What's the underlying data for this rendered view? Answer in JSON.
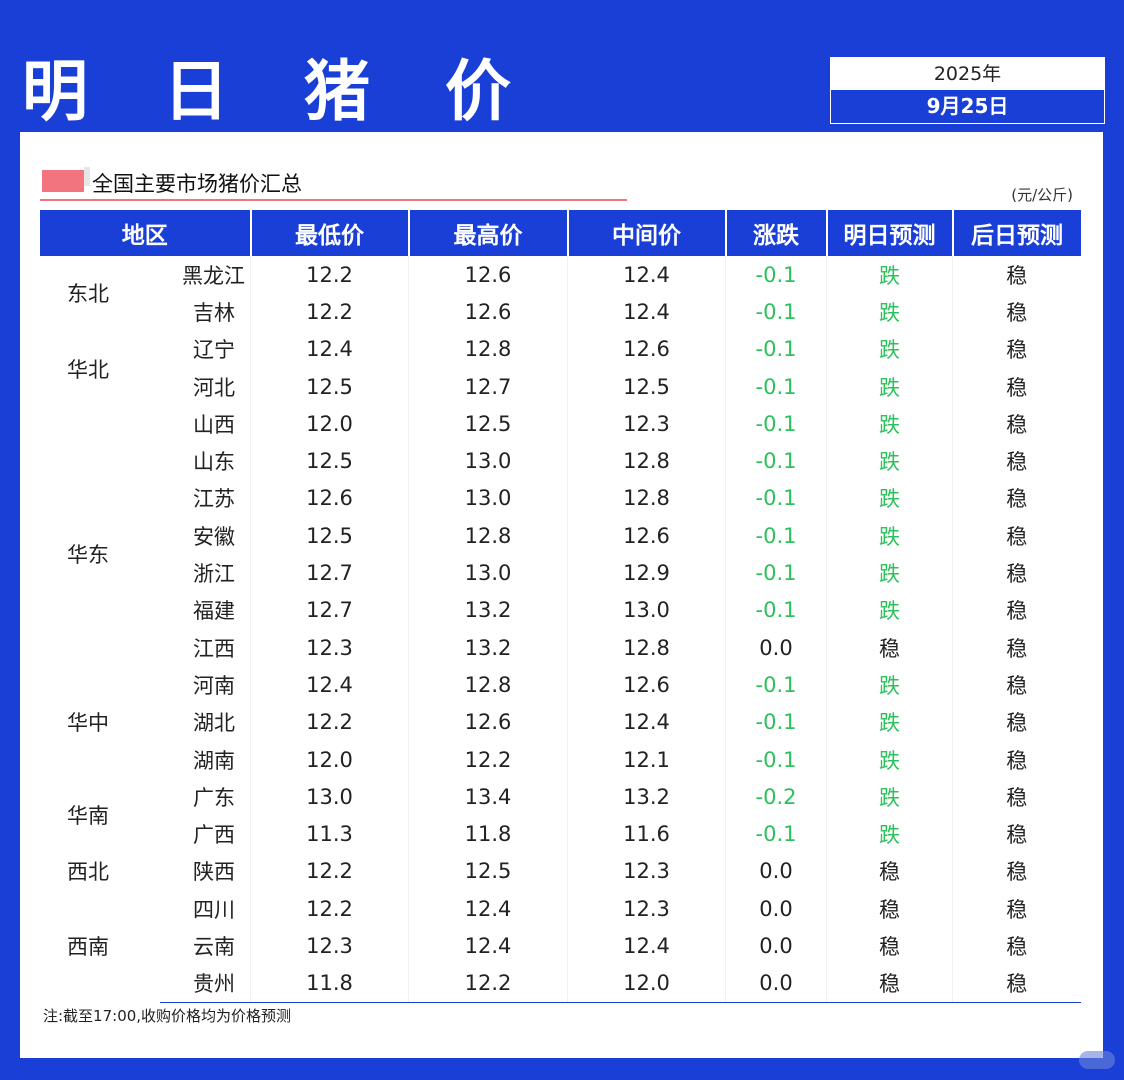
{
  "header": {
    "title": "明 日 猪 价",
    "year": "2025年",
    "date": "9月25日"
  },
  "section": {
    "title": "全国主要市场猪价汇总",
    "unit": "(元/公斤)"
  },
  "table": {
    "columns": [
      "地区",
      "最低价",
      "最高价",
      "中间价",
      "涨跌",
      "明日预测",
      "后日预测"
    ],
    "rows": [
      {
        "region": "东北",
        "province": "黑龙江",
        "low": "12.2",
        "high": "12.6",
        "mid": "12.4",
        "change": "-0.1",
        "forecast_tomorrow": "跌",
        "forecast_day_after": "稳"
      },
      {
        "region": "",
        "province": "吉林",
        "low": "12.2",
        "high": "12.6",
        "mid": "12.4",
        "change": "-0.1",
        "forecast_tomorrow": "跌",
        "forecast_day_after": "稳"
      },
      {
        "region": "华北",
        "province": "辽宁",
        "low": "12.4",
        "high": "12.8",
        "mid": "12.6",
        "change": "-0.1",
        "forecast_tomorrow": "跌",
        "forecast_day_after": "稳"
      },
      {
        "region": "",
        "province": "河北",
        "low": "12.5",
        "high": "12.7",
        "mid": "12.5",
        "change": "-0.1",
        "forecast_tomorrow": "跌",
        "forecast_day_after": "稳"
      },
      {
        "region": "",
        "province": "山西",
        "low": "12.0",
        "high": "12.5",
        "mid": "12.3",
        "change": "-0.1",
        "forecast_tomorrow": "跌",
        "forecast_day_after": "稳"
      },
      {
        "region": "华东",
        "province": "山东",
        "low": "12.5",
        "high": "13.0",
        "mid": "12.8",
        "change": "-0.1",
        "forecast_tomorrow": "跌",
        "forecast_day_after": "稳"
      },
      {
        "region": "",
        "province": "江苏",
        "low": "12.6",
        "high": "13.0",
        "mid": "12.8",
        "change": "-0.1",
        "forecast_tomorrow": "跌",
        "forecast_day_after": "稳"
      },
      {
        "region": "",
        "province": "安徽",
        "low": "12.5",
        "high": "12.8",
        "mid": "12.6",
        "change": "-0.1",
        "forecast_tomorrow": "跌",
        "forecast_day_after": "稳"
      },
      {
        "region": "",
        "province": "浙江",
        "low": "12.7",
        "high": "13.0",
        "mid": "12.9",
        "change": "-0.1",
        "forecast_tomorrow": "跌",
        "forecast_day_after": "稳"
      },
      {
        "region": "",
        "province": "福建",
        "low": "12.7",
        "high": "13.2",
        "mid": "13.0",
        "change": "-0.1",
        "forecast_tomorrow": "跌",
        "forecast_day_after": "稳"
      },
      {
        "region": "",
        "province": "江西",
        "low": "12.3",
        "high": "13.2",
        "mid": "12.8",
        "change": "0.0",
        "forecast_tomorrow": "稳",
        "forecast_day_after": "稳"
      },
      {
        "region": "华中",
        "province": "河南",
        "low": "12.4",
        "high": "12.8",
        "mid": "12.6",
        "change": "-0.1",
        "forecast_tomorrow": "跌",
        "forecast_day_after": "稳"
      },
      {
        "region": "",
        "province": "湖北",
        "low": "12.2",
        "high": "12.6",
        "mid": "12.4",
        "change": "-0.1",
        "forecast_tomorrow": "跌",
        "forecast_day_after": "稳"
      },
      {
        "region": "",
        "province": "湖南",
        "low": "12.0",
        "high": "12.2",
        "mid": "12.1",
        "change": "-0.1",
        "forecast_tomorrow": "跌",
        "forecast_day_after": "稳"
      },
      {
        "region": "华南",
        "province": "广东",
        "low": "13.0",
        "high": "13.4",
        "mid": "13.2",
        "change": "-0.2",
        "forecast_tomorrow": "跌",
        "forecast_day_after": "稳"
      },
      {
        "region": "",
        "province": "广西",
        "low": "11.3",
        "high": "11.8",
        "mid": "11.6",
        "change": "-0.1",
        "forecast_tomorrow": "跌",
        "forecast_day_after": "稳"
      },
      {
        "region": "西北",
        "province": "陕西",
        "low": "12.2",
        "high": "12.5",
        "mid": "12.3",
        "change": "0.0",
        "forecast_tomorrow": "稳",
        "forecast_day_after": "稳"
      },
      {
        "region": "西南",
        "province": "四川",
        "low": "12.2",
        "high": "12.4",
        "mid": "12.3",
        "change": "0.0",
        "forecast_tomorrow": "稳",
        "forecast_day_after": "稳"
      },
      {
        "region": "",
        "province": "云南",
        "low": "12.3",
        "high": "12.4",
        "mid": "12.4",
        "change": "0.0",
        "forecast_tomorrow": "稳",
        "forecast_day_after": "稳"
      },
      {
        "region": "",
        "province": "贵州",
        "low": "11.8",
        "high": "12.2",
        "mid": "12.0",
        "change": "0.0",
        "forecast_tomorrow": "稳",
        "forecast_day_after": "稳"
      }
    ]
  },
  "note": "注:截至17:00,收购价格均为价格预测",
  "colors": {
    "brand_blue": "#1a3fd6",
    "accent_pink": "#f2747e",
    "down_green": "#2bc15b"
  }
}
